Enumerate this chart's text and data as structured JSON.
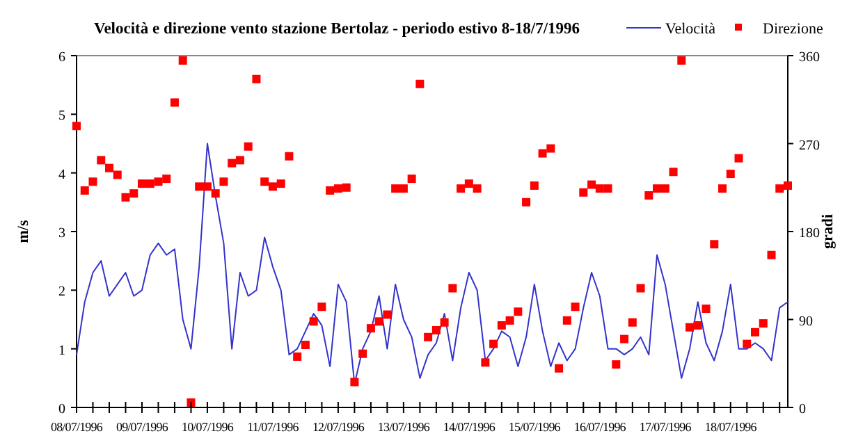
{
  "chart_data": {
    "type": "line",
    "title": "Velocità e direzione vento stazione Bertolaz - periodo estivo 8-18/7/1996",
    "ylabel": "m/s",
    "y2label": "gradi",
    "x": [
      "1996-07-08T00:00",
      "1996-07-08T03:00",
      "1996-07-08T06:00",
      "1996-07-08T09:00",
      "1996-07-08T12:00",
      "1996-07-08T15:00",
      "1996-07-08T18:00",
      "1996-07-08T21:00",
      "1996-07-09T00:00",
      "1996-07-09T03:00",
      "1996-07-09T06:00",
      "1996-07-09T09:00",
      "1996-07-09T12:00",
      "1996-07-09T15:00",
      "1996-07-09T18:00",
      "1996-07-09T21:00",
      "1996-07-10T00:00",
      "1996-07-10T03:00",
      "1996-07-10T06:00",
      "1996-07-10T09:00",
      "1996-07-10T12:00",
      "1996-07-10T15:00",
      "1996-07-10T18:00",
      "1996-07-10T21:00",
      "1996-07-11T00:00",
      "1996-07-11T03:00",
      "1996-07-11T06:00",
      "1996-07-11T09:00",
      "1996-07-11T12:00",
      "1996-07-11T15:00",
      "1996-07-11T18:00",
      "1996-07-11T21:00",
      "1996-07-12T00:00",
      "1996-07-12T03:00",
      "1996-07-12T06:00",
      "1996-07-12T09:00",
      "1996-07-12T12:00",
      "1996-07-12T15:00",
      "1996-07-12T18:00",
      "1996-07-12T21:00",
      "1996-07-13T00:00",
      "1996-07-13T03:00",
      "1996-07-13T06:00",
      "1996-07-13T09:00",
      "1996-07-13T12:00",
      "1996-07-13T15:00",
      "1996-07-13T18:00",
      "1996-07-13T21:00",
      "1996-07-14T00:00",
      "1996-07-14T03:00",
      "1996-07-14T06:00",
      "1996-07-14T09:00",
      "1996-07-14T12:00",
      "1996-07-14T15:00",
      "1996-07-14T18:00",
      "1996-07-14T21:00",
      "1996-07-15T00:00",
      "1996-07-15T03:00",
      "1996-07-15T06:00",
      "1996-07-15T09:00",
      "1996-07-15T12:00",
      "1996-07-15T15:00",
      "1996-07-15T18:00",
      "1996-07-15T21:00",
      "1996-07-16T00:00",
      "1996-07-16T03:00",
      "1996-07-16T06:00",
      "1996-07-16T09:00",
      "1996-07-16T12:00",
      "1996-07-16T15:00",
      "1996-07-16T18:00",
      "1996-07-16T21:00",
      "1996-07-17T00:00",
      "1996-07-17T03:00",
      "1996-07-17T06:00",
      "1996-07-17T09:00",
      "1996-07-17T12:00",
      "1996-07-17T15:00",
      "1996-07-17T18:00",
      "1996-07-17T21:00",
      "1996-07-18T00:00",
      "1996-07-18T03:00",
      "1996-07-18T06:00",
      "1996-07-18T09:00",
      "1996-07-18T12:00",
      "1996-07-18T15:00",
      "1996-07-18T18:00",
      "1996-07-18T21:00"
    ],
    "series": [
      {
        "name": "Velocità",
        "color": "#3333cc",
        "marker": "none",
        "values": [
          0.9,
          1.8,
          2.3,
          2.5,
          1.9,
          2.1,
          2.3,
          1.9,
          2.0,
          2.6,
          2.8,
          2.6,
          2.7,
          1.5,
          1.0,
          2.4,
          4.5,
          3.6,
          2.8,
          1.0,
          2.3,
          1.9,
          2.0,
          2.9,
          2.4,
          2.0,
          0.9,
          1.0,
          1.3,
          1.6,
          1.4,
          0.7,
          2.1,
          1.8,
          0.4,
          1.0,
          1.3,
          1.9,
          1.0,
          2.1,
          1.5,
          1.2,
          0.5,
          0.9,
          1.1,
          1.6,
          0.8,
          1.7,
          2.3,
          2.0,
          0.8,
          1.0,
          1.3,
          1.2,
          0.7,
          1.2,
          2.1,
          1.3,
          0.7,
          1.1,
          0.8,
          1.0,
          1.7,
          2.3,
          1.9,
          1.0,
          1.0,
          0.9,
          1.0,
          1.2,
          0.9,
          2.6,
          2.1,
          1.3,
          0.5,
          1.0,
          1.8,
          1.1,
          0.8,
          1.3,
          2.1,
          1.0,
          1.0,
          1.1,
          1.0,
          0.8,
          1.7,
          1.8
        ]
      },
      {
        "name": "Direzione",
        "type": "scatter",
        "axis": "y2",
        "color": "#ff0000",
        "marker": "square",
        "values": [
          288,
          222,
          231,
          253,
          245,
          238,
          215,
          219,
          229,
          229,
          231,
          234,
          312,
          355,
          5,
          226,
          226,
          219,
          231,
          250,
          253,
          267,
          336,
          231,
          226,
          229,
          257,
          52,
          64,
          88,
          103,
          222,
          224,
          225,
          26,
          55,
          81,
          88,
          95,
          224,
          224,
          234,
          331,
          72,
          79,
          87,
          122,
          224,
          229,
          224,
          46,
          65,
          84,
          89,
          98,
          210,
          227,
          260,
          265,
          40,
          89,
          103,
          220,
          228,
          224,
          224,
          44,
          70,
          87,
          122,
          217,
          224,
          224,
          241,
          355,
          82,
          84,
          101,
          167,
          224,
          239,
          255,
          65,
          77,
          86,
          156,
          224,
          227
        ]
      }
    ],
    "xlim": [
      "1996-07-08T00:00",
      "1996-07-18T21:00"
    ],
    "xticks": [
      {
        "value": "1996-07-08T00:00",
        "label": "08/07/1996"
      },
      {
        "value": "1996-07-08T06:00",
        "label": null
      },
      {
        "value": "1996-07-08T12:00",
        "label": null
      },
      {
        "value": "1996-07-08T18:00",
        "label": null
      },
      {
        "value": "1996-07-09T00:00",
        "label": "09/07/1996"
      },
      {
        "value": "1996-07-09T06:00",
        "label": null
      },
      {
        "value": "1996-07-09T12:00",
        "label": null
      },
      {
        "value": "1996-07-09T18:00",
        "label": null
      },
      {
        "value": "1996-07-10T00:00",
        "label": "10/07/1996"
      },
      {
        "value": "1996-07-10T06:00",
        "label": null
      },
      {
        "value": "1996-07-10T12:00",
        "label": null
      },
      {
        "value": "1996-07-10T18:00",
        "label": null
      },
      {
        "value": "1996-07-11T00:00",
        "label": "11/07/1996"
      },
      {
        "value": "1996-07-11T06:00",
        "label": null
      },
      {
        "value": "1996-07-11T12:00",
        "label": null
      },
      {
        "value": "1996-07-11T18:00",
        "label": null
      },
      {
        "value": "1996-07-12T00:00",
        "label": "12/07/1996"
      },
      {
        "value": "1996-07-12T06:00",
        "label": null
      },
      {
        "value": "1996-07-12T12:00",
        "label": null
      },
      {
        "value": "1996-07-12T18:00",
        "label": null
      },
      {
        "value": "1996-07-13T00:00",
        "label": "13/07/1996"
      },
      {
        "value": "1996-07-13T06:00",
        "label": null
      },
      {
        "value": "1996-07-13T12:00",
        "label": null
      },
      {
        "value": "1996-07-13T18:00",
        "label": null
      },
      {
        "value": "1996-07-14T00:00",
        "label": "14/07/1996"
      },
      {
        "value": "1996-07-14T06:00",
        "label": null
      },
      {
        "value": "1996-07-14T12:00",
        "label": null
      },
      {
        "value": "1996-07-14T18:00",
        "label": null
      },
      {
        "value": "1996-07-15T00:00",
        "label": "15/07/1996"
      },
      {
        "value": "1996-07-15T06:00",
        "label": null
      },
      {
        "value": "1996-07-15T12:00",
        "label": null
      },
      {
        "value": "1996-07-15T18:00",
        "label": null
      },
      {
        "value": "1996-07-16T00:00",
        "label": "16/07/1996"
      },
      {
        "value": "1996-07-16T06:00",
        "label": null
      },
      {
        "value": "1996-07-16T12:00",
        "label": null
      },
      {
        "value": "1996-07-16T18:00",
        "label": null
      },
      {
        "value": "1996-07-17T00:00",
        "label": "17/07/1996"
      },
      {
        "value": "1996-07-17T06:00",
        "label": null
      },
      {
        "value": "1996-07-17T12:00",
        "label": null
      },
      {
        "value": "1996-07-17T18:00",
        "label": null
      },
      {
        "value": "1996-07-18T00:00",
        "label": "18/07/1996"
      },
      {
        "value": "1996-07-18T06:00",
        "label": null
      },
      {
        "value": "1996-07-18T12:00",
        "label": null
      },
      {
        "value": "1996-07-18T18:00",
        "label": null
      }
    ],
    "ylim": [
      0,
      6
    ],
    "yticks": [
      0,
      1,
      2,
      3,
      4,
      5,
      6
    ],
    "y2lim": [
      0,
      360
    ],
    "y2ticks": [
      0,
      90,
      180,
      270,
      360
    ],
    "grid": false,
    "legend": "top right"
  }
}
